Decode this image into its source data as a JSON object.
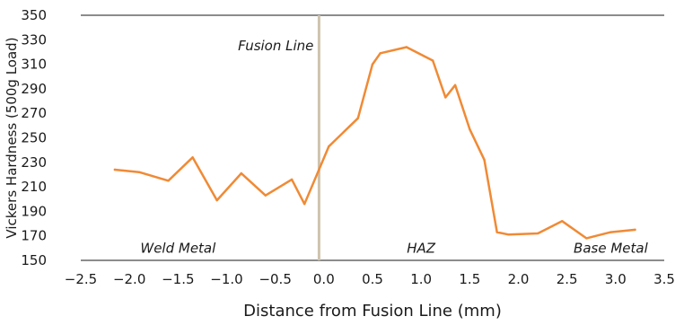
{
  "chart_data": {
    "type": "line",
    "xlabel": "Distance from Fusion Line (mm)",
    "ylabel": "Vickers Hardness (500g Load)",
    "xlim": [
      -2.5,
      3.5
    ],
    "ylim": [
      150,
      350
    ],
    "x_ticks": [
      -2.5,
      -2.0,
      -1.5,
      -1.0,
      -0.5,
      0.0,
      0.5,
      1.0,
      1.5,
      2.0,
      2.5,
      3.0,
      3.5
    ],
    "x_tick_labels": [
      "−2.5",
      "−2.0",
      "−1.5",
      "−1.0",
      "−0.5",
      "0.0",
      "0.5",
      "1.0",
      "1.5",
      "2.0",
      "2.5",
      "3.0",
      "3.5"
    ],
    "y_ticks": [
      150,
      170,
      190,
      210,
      230,
      250,
      270,
      290,
      310,
      330,
      350
    ],
    "grid": false,
    "colors": {
      "line": "#F08A35",
      "fusion_line": "#CFC3AE",
      "axis": "#1a1a1a"
    },
    "series": [
      {
        "x": [
          -2.15,
          -1.9,
          -1.6,
          -1.35,
          -1.1,
          -0.85,
          -0.6,
          -0.33,
          -0.2,
          0.05,
          0.35,
          0.5,
          0.58,
          0.85,
          1.12,
          1.25,
          1.35,
          1.5,
          1.65,
          1.78,
          1.9,
          2.2,
          2.45,
          2.7,
          2.95,
          3.2
        ],
        "y": [
          224,
          222,
          215,
          234,
          199,
          221,
          203,
          216,
          196,
          243,
          266,
          310,
          319,
          324,
          313,
          283,
          293,
          257,
          232,
          173,
          171,
          172,
          182,
          168,
          173,
          175
        ]
      }
    ],
    "reference_line": {
      "x": -0.05,
      "label": "Fusion Line"
    },
    "annotations": [
      {
        "text": "Weld Metal",
        "x": -1.5,
        "y": 160
      },
      {
        "text": "HAZ",
        "x": 1.0,
        "y": 160
      },
      {
        "text": "Base Metal",
        "x": 2.95,
        "y": 160
      }
    ]
  }
}
